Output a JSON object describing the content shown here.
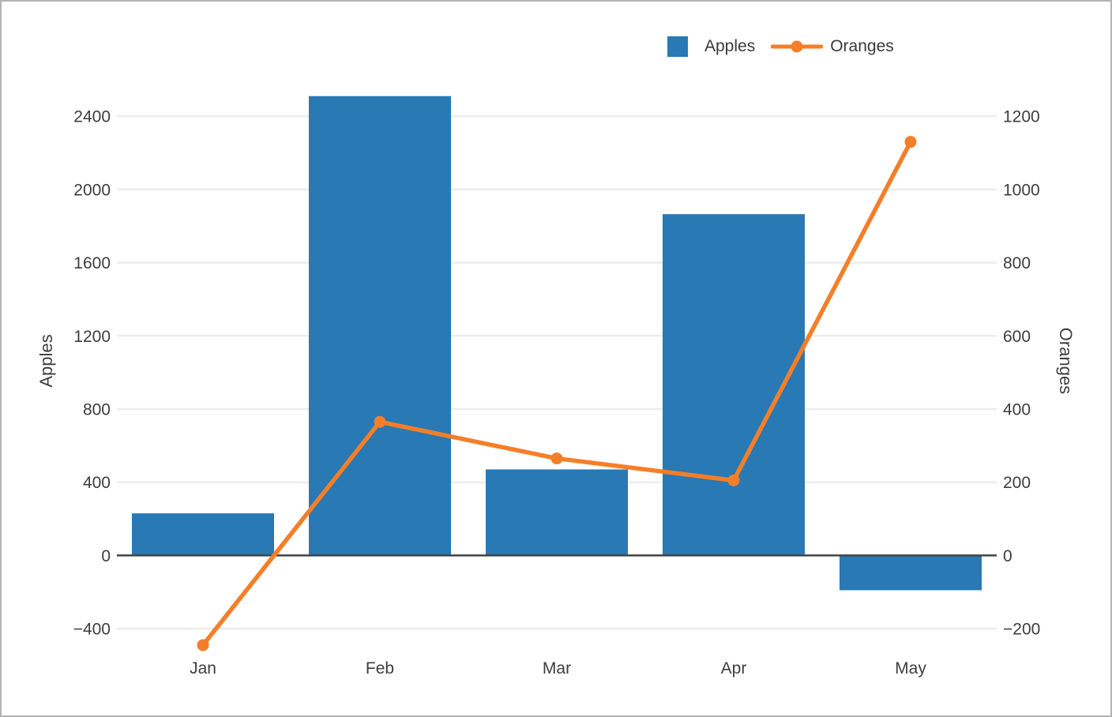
{
  "chart_data": {
    "type": "combo",
    "title": "",
    "categories": [
      "Jan",
      "Feb",
      "Mar",
      "Apr",
      "May"
    ],
    "series": [
      {
        "name": "Apples",
        "type": "bar",
        "axis": "left",
        "color": "#2879b4",
        "values": [
          230,
          2510,
          470,
          1865,
          -190
        ]
      },
      {
        "name": "Oranges",
        "type": "line",
        "axis": "right",
        "color": "#f57e28",
        "values": [
          -245,
          365,
          265,
          205,
          1130
        ]
      }
    ],
    "y_left": {
      "label": "Apples",
      "tick_values": [
        -400,
        0,
        400,
        800,
        1200,
        1600,
        2000,
        2400
      ],
      "tick_labels": [
        "−400",
        "0",
        "400",
        "800",
        "1200",
        "1600",
        "2000",
        "2400"
      ]
    },
    "y_right": {
      "label": "Oranges",
      "tick_values": [
        -200,
        0,
        200,
        400,
        600,
        800,
        1000,
        1200
      ],
      "tick_labels": [
        "−200",
        "0",
        "200",
        "400",
        "600",
        "800",
        "1000",
        "1200"
      ]
    },
    "grid": true,
    "legend_position": "top-right",
    "colors": {
      "grid_line": "#ececec",
      "zero_line": "#444444",
      "tick_text": "#3d3d3d"
    }
  }
}
